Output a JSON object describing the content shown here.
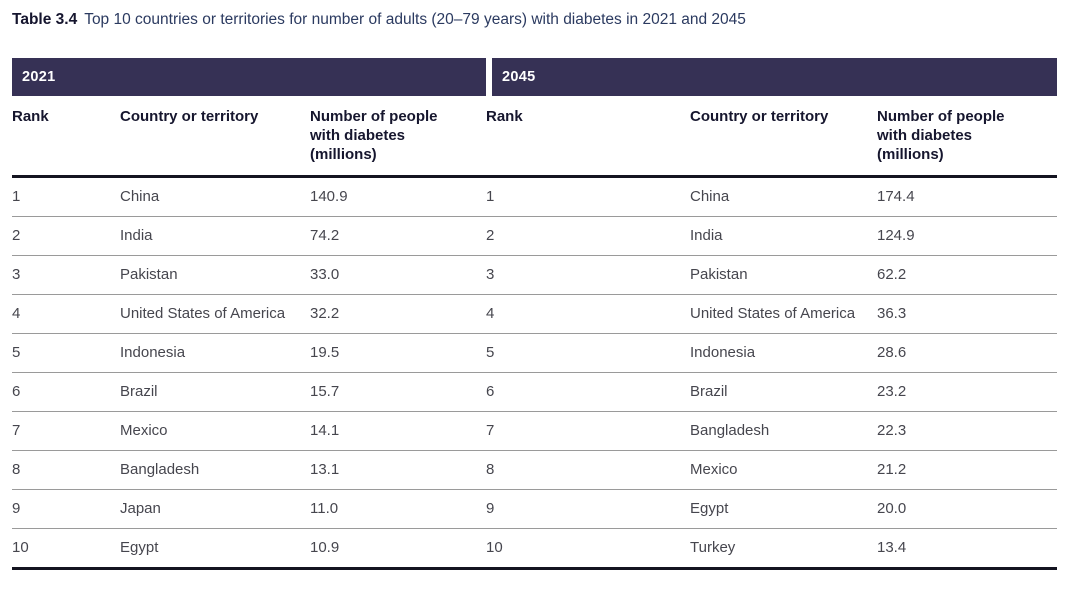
{
  "title": {
    "label": "Table 3.4",
    "text": "Top 10 countries or territories for number of adults (20–79 years) with diabetes in 2021 and 2045"
  },
  "colors": {
    "year_band_background": "#363155",
    "year_band_text": "#ffffff",
    "thick_rule": "#141420",
    "thin_rule": "#9a9a9a",
    "title_navy": "#2b3a60",
    "header_text": "#16162e",
    "body_text": "#46464e"
  },
  "table": {
    "left": {
      "year": "2021",
      "headers": {
        "rank": "Rank",
        "country": "Country or territory",
        "number": "Number of people with diabetes (millions)"
      },
      "rows": [
        {
          "rank": "1",
          "country": "China",
          "value": "140.9"
        },
        {
          "rank": "2",
          "country": "India",
          "value": "74.2"
        },
        {
          "rank": "3",
          "country": "Pakistan",
          "value": "33.0"
        },
        {
          "rank": "4",
          "country": "United States of America",
          "value": "32.2"
        },
        {
          "rank": "5",
          "country": "Indonesia",
          "value": "19.5"
        },
        {
          "rank": "6",
          "country": "Brazil",
          "value": "15.7"
        },
        {
          "rank": "7",
          "country": "Mexico",
          "value": "14.1"
        },
        {
          "rank": "8",
          "country": "Bangladesh",
          "value": "13.1"
        },
        {
          "rank": "9",
          "country": "Japan",
          "value": "11.0"
        },
        {
          "rank": "10",
          "country": "Egypt",
          "value": "10.9"
        }
      ]
    },
    "right": {
      "year": "2045",
      "headers": {
        "rank": "Rank",
        "country": "Country or territory",
        "number": "Number of people with diabetes (millions)"
      },
      "rows": [
        {
          "rank": "1",
          "country": "China",
          "value": "174.4"
        },
        {
          "rank": "2",
          "country": "India",
          "value": "124.9"
        },
        {
          "rank": "3",
          "country": "Pakistan",
          "value": "62.2"
        },
        {
          "rank": "4",
          "country": "United States of America",
          "value": "36.3"
        },
        {
          "rank": "5",
          "country": "Indonesia",
          "value": "28.6"
        },
        {
          "rank": "6",
          "country": "Brazil",
          "value": "23.2"
        },
        {
          "rank": "7",
          "country": "Bangladesh",
          "value": "22.3"
        },
        {
          "rank": "8",
          "country": "Mexico",
          "value": "21.2"
        },
        {
          "rank": "9",
          "country": "Egypt",
          "value": "20.0"
        },
        {
          "rank": "10",
          "country": "Turkey",
          "value": "13.4"
        }
      ]
    }
  }
}
